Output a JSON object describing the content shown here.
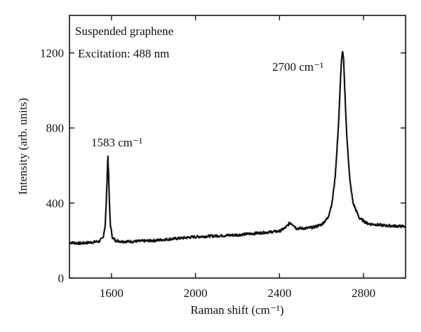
{
  "chart_data": {
    "type": "line",
    "title": "",
    "xlabel": "Raman shift (cm⁻¹)",
    "ylabel": "Intensity (arb. units)",
    "xlim": [
      1400,
      3000
    ],
    "ylim": [
      0,
      1400
    ],
    "xticks": [
      1600,
      2000,
      2400,
      2800
    ],
    "yticks": [
      0,
      400,
      800,
      1200
    ],
    "xtick_labels": [
      "1600",
      "2000",
      "2400",
      "2800"
    ],
    "ytick_labels": [
      "0",
      "400",
      "800",
      "1200"
    ],
    "grid": false,
    "annotations": [
      {
        "text": "Suspended graphene",
        "x": 1420,
        "y": 1315
      },
      {
        "text": "Excitation: 488 nm",
        "x": 1420,
        "y": 1205
      },
      {
        "text": "1583 cm⁻¹",
        "x": 1510,
        "y": 710
      },
      {
        "text": "2700 cm⁻¹",
        "x": 2440,
        "y": 1100
      }
    ],
    "series": [
      {
        "x": [
          1400,
          1450,
          1500,
          1540,
          1560,
          1570,
          1575,
          1580,
          1583,
          1586,
          1590,
          1595,
          1605,
          1620,
          1650,
          1700,
          1800,
          1900,
          2000,
          2100,
          2200,
          2300,
          2400,
          2430,
          2450,
          2465,
          2480,
          2520,
          2560,
          2600,
          2630,
          2650,
          2665,
          2680,
          2690,
          2695,
          2700,
          2705,
          2710,
          2720,
          2735,
          2750,
          2780,
          2820,
          2900,
          3000
        ],
        "y": [
          190,
          185,
          190,
          195,
          215,
          280,
          400,
          560,
          650,
          560,
          400,
          280,
          215,
          200,
          195,
          195,
          200,
          210,
          220,
          225,
          230,
          240,
          250,
          270,
          295,
          285,
          265,
          265,
          270,
          285,
          320,
          400,
          540,
          800,
          1050,
          1160,
          1210,
          1160,
          1020,
          760,
          520,
          400,
          320,
          290,
          280,
          275
        ]
      }
    ]
  }
}
